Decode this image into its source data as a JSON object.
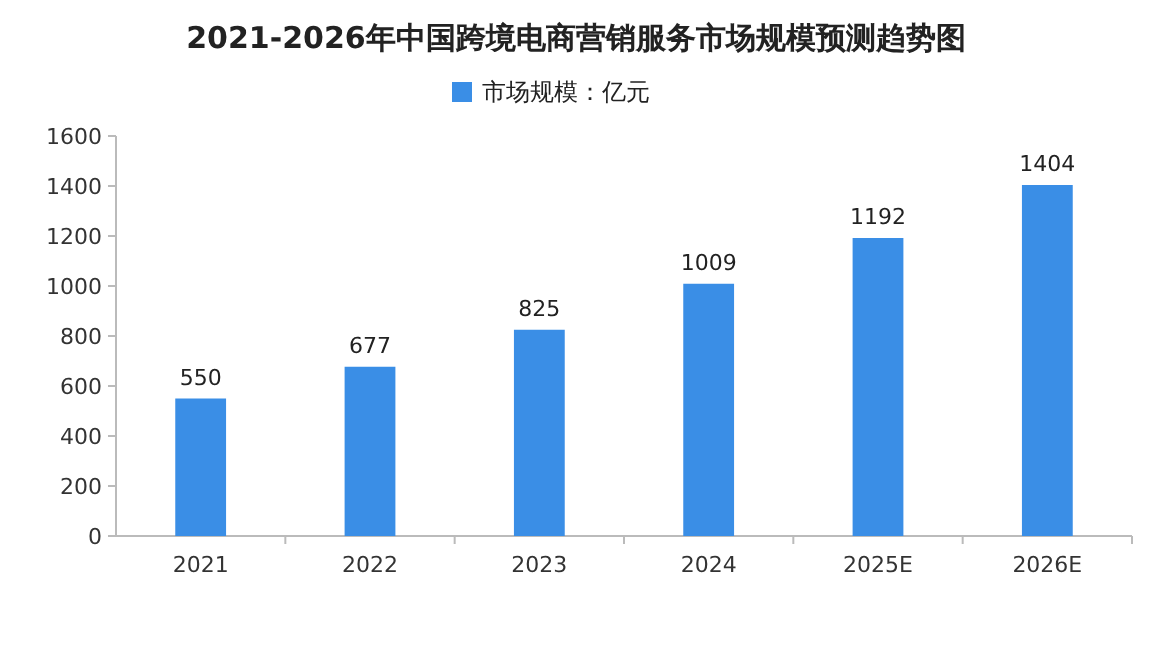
{
  "chart_data": {
    "type": "bar",
    "title": "2021-2026年中国跨境电商营销服务市场规模预测趋势图",
    "categories": [
      "2021",
      "2022",
      "2023",
      "2024",
      "2025E",
      "2026E"
    ],
    "series": [
      {
        "name": "市场规模：亿元",
        "color": "#3a8ee6",
        "values": [
          550,
          677,
          825,
          1009,
          1192,
          1404
        ]
      }
    ],
    "ylim": [
      0,
      1600
    ],
    "yticks": [
      0,
      200,
      400,
      600,
      800,
      1000,
      1200,
      1400,
      1600
    ],
    "data_labels": true,
    "legend": "top",
    "grid": false
  }
}
